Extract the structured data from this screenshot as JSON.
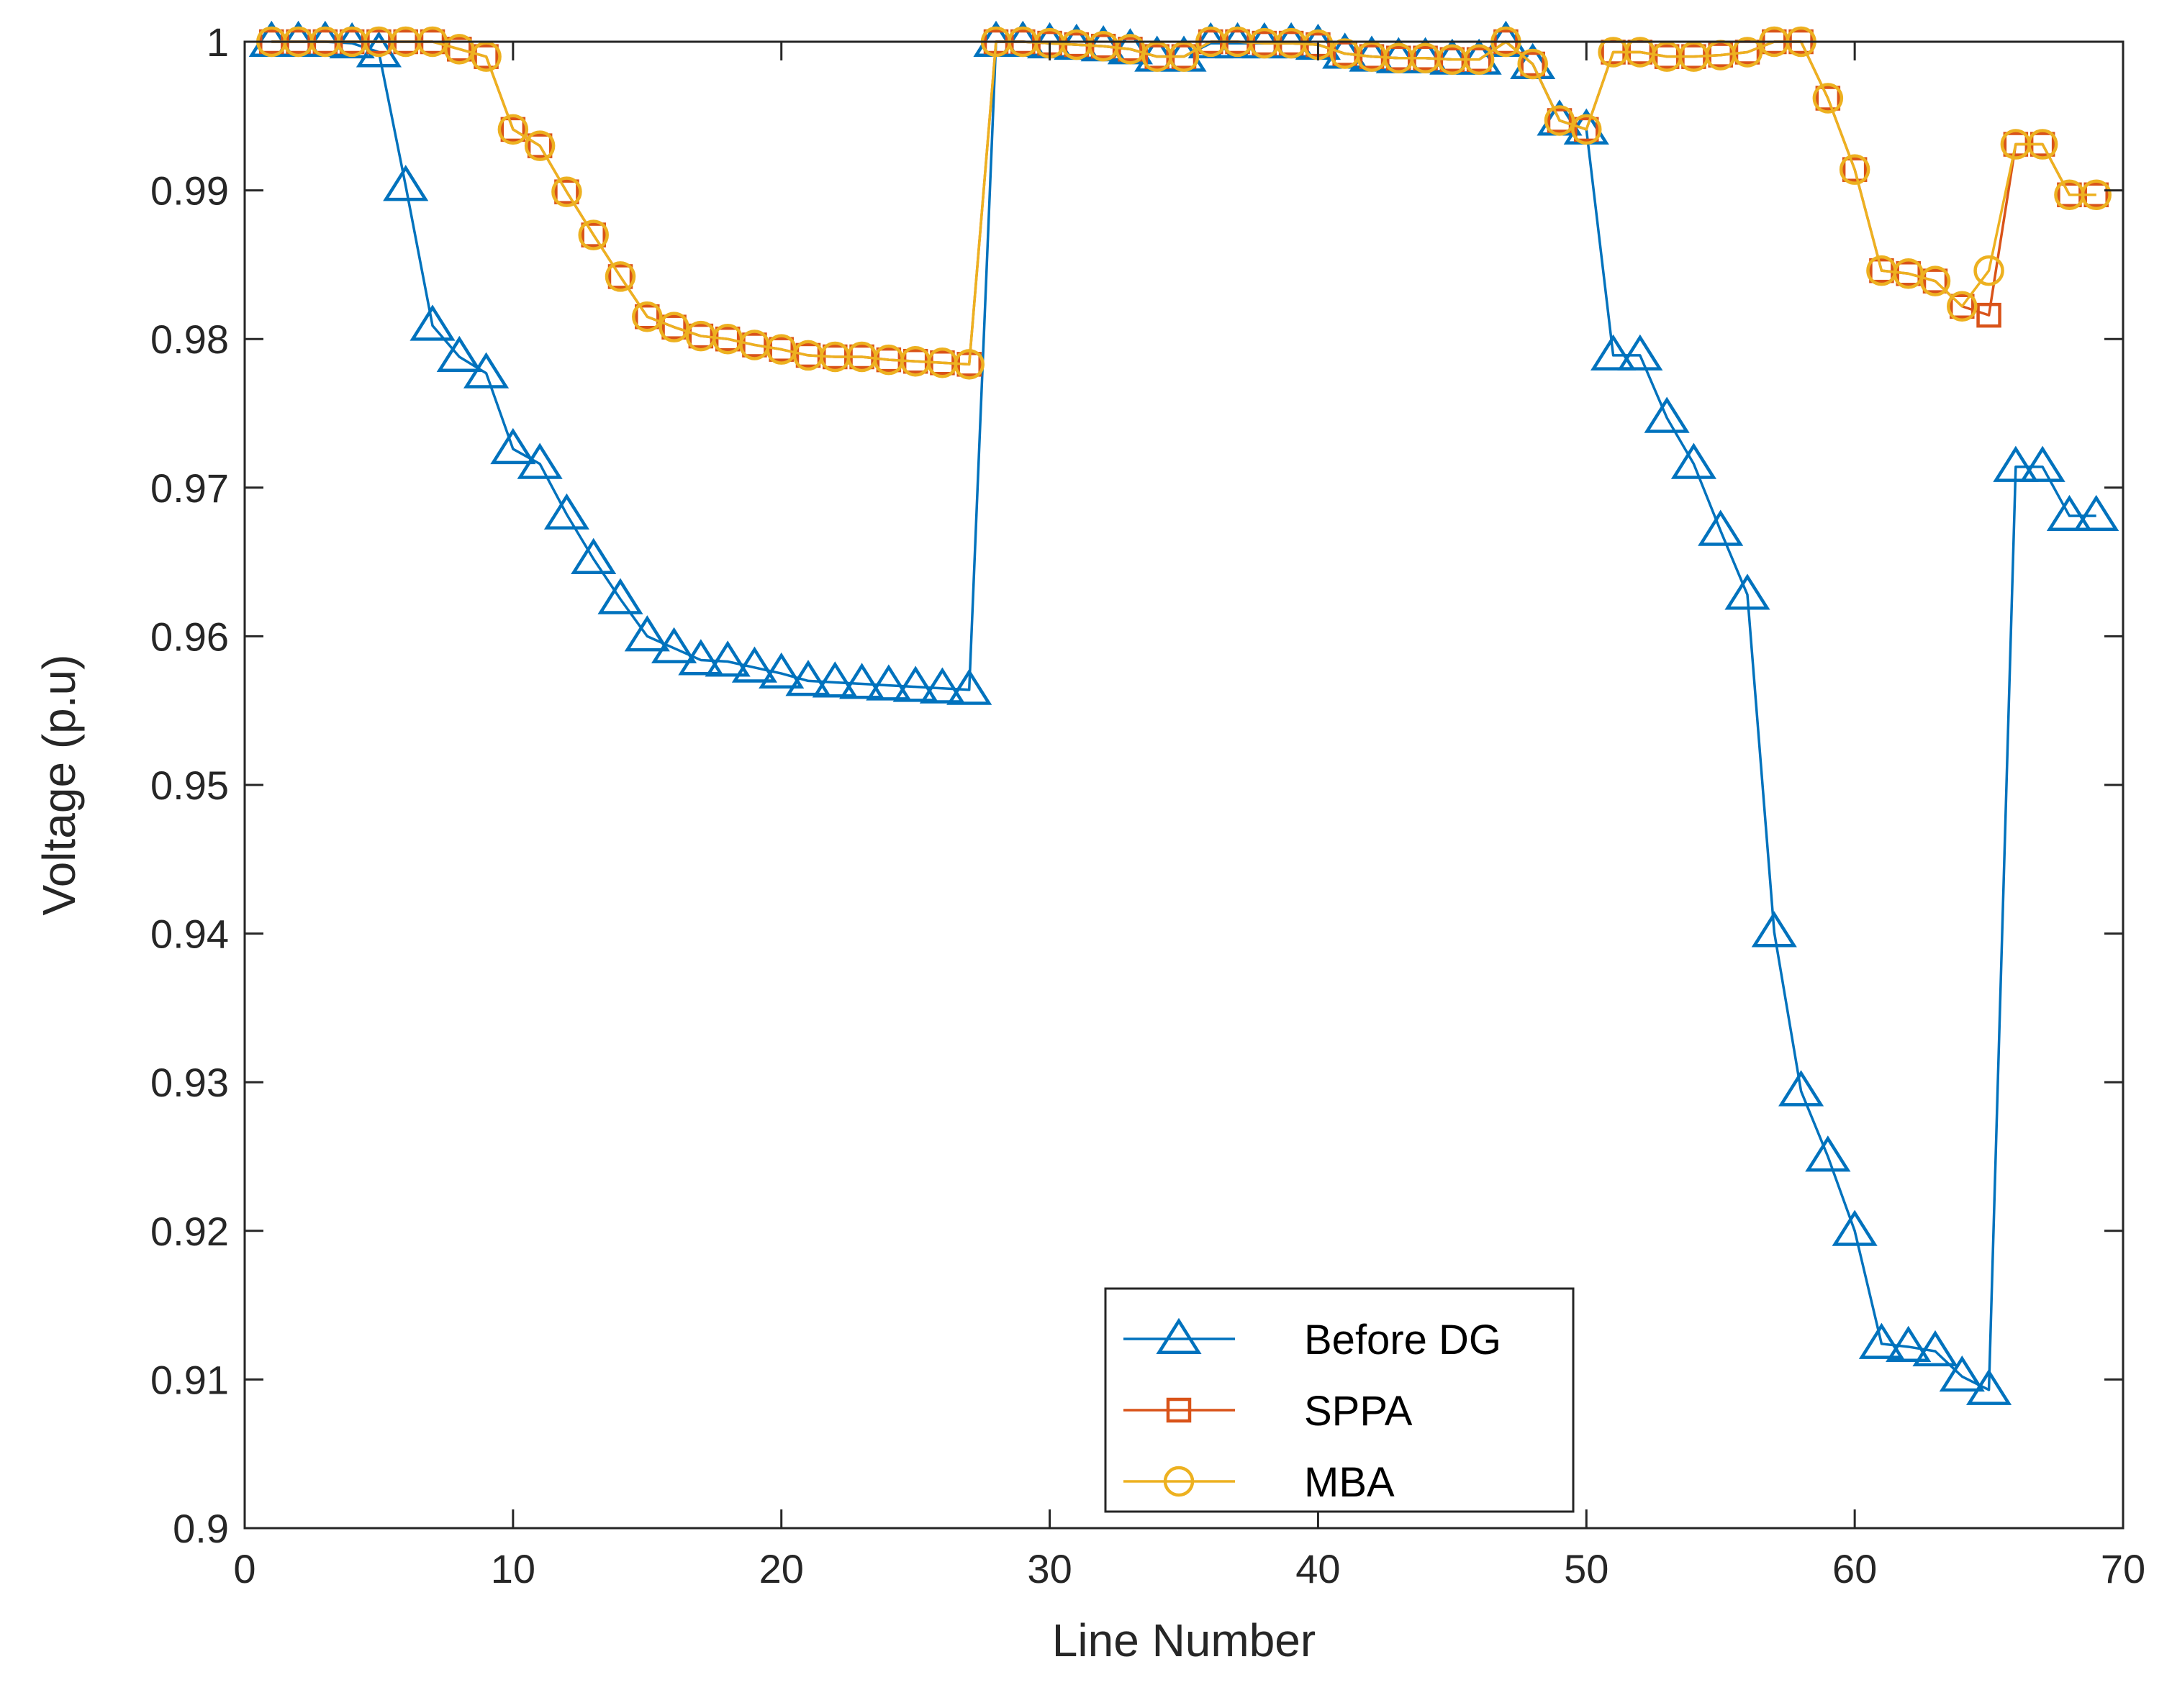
{
  "chart_data": {
    "type": "line",
    "xlabel": "Line Number",
    "ylabel": "Voltage (p.u)",
    "xlim": [
      0,
      70
    ],
    "ylim": [
      0.9,
      1
    ],
    "xticks": [
      0,
      10,
      20,
      30,
      40,
      50,
      60,
      70
    ],
    "yticks": [
      0.9,
      0.91,
      0.92,
      0.93,
      0.94,
      0.95,
      0.96,
      0.97,
      0.98,
      0.99,
      1
    ],
    "ytick_labels": [
      "0.9",
      "0.91",
      "0.92",
      "0.93",
      "0.94",
      "0.95",
      "0.96",
      "0.97",
      "0.98",
      "0.99",
      "1"
    ],
    "grid": false,
    "legend_position": "bottom-center",
    "x": [
      1,
      2,
      3,
      4,
      5,
      6,
      7,
      8,
      9,
      10,
      11,
      12,
      13,
      14,
      15,
      16,
      17,
      18,
      19,
      20,
      21,
      22,
      23,
      24,
      25,
      26,
      27,
      28,
      29,
      30,
      31,
      32,
      33,
      34,
      35,
      36,
      37,
      38,
      39,
      40,
      41,
      42,
      43,
      44,
      45,
      46,
      47,
      48,
      49,
      50,
      51,
      52,
      53,
      54,
      55,
      56,
      57,
      58,
      59,
      60,
      61,
      62,
      63,
      64,
      65,
      66,
      67,
      68,
      69
    ],
    "series": [
      {
        "name": "Before DG",
        "color": "#0072BD",
        "marker": "triangle",
        "values": [
          1.0,
          1.0,
          1.0,
          0.9999,
          0.9993,
          0.9903,
          0.9809,
          0.9788,
          0.9777,
          0.9726,
          0.9716,
          0.9682,
          0.9652,
          0.9625,
          0.96,
          0.9592,
          0.9584,
          0.9583,
          0.9579,
          0.9575,
          0.957,
          0.9569,
          0.9568,
          0.9567,
          0.9566,
          0.9565,
          0.9564,
          1.0,
          1.0,
          0.9999,
          0.9998,
          0.9997,
          0.9995,
          0.999,
          0.999,
          0.9999,
          0.9999,
          0.9999,
          0.9999,
          0.9998,
          0.9992,
          0.999,
          0.9989,
          0.9989,
          0.9988,
          0.9988,
          1.0,
          0.9985,
          0.9947,
          0.9941,
          0.9789,
          0.9789,
          0.9747,
          0.9716,
          0.9671,
          0.9628,
          0.9401,
          0.9294,
          0.925,
          0.92,
          0.9124,
          0.9122,
          0.9119,
          0.9102,
          0.9093,
          0.9714,
          0.9714,
          0.9681,
          0.9681
        ]
      },
      {
        "name": "SPPA",
        "color": "#D95319",
        "marker": "square",
        "values": [
          1.0,
          1.0,
          1.0,
          1.0,
          1.0,
          1.0,
          1.0,
          0.9995,
          0.999,
          0.9941,
          0.993,
          0.9899,
          0.987,
          0.9842,
          0.9815,
          0.9808,
          0.9802,
          0.98,
          0.9796,
          0.9793,
          0.9789,
          0.9788,
          0.9788,
          0.9786,
          0.9785,
          0.9784,
          0.9783,
          1.0,
          1.0,
          0.9999,
          0.9998,
          0.9997,
          0.9995,
          0.999,
          0.999,
          1.0,
          1.0,
          0.9999,
          0.9999,
          0.9998,
          0.9992,
          0.999,
          0.9989,
          0.9989,
          0.9988,
          0.9988,
          1.0,
          0.9985,
          0.9947,
          0.9941,
          0.9993,
          0.9993,
          0.999,
          0.999,
          0.9991,
          0.9993,
          1.0,
          1.0,
          0.9962,
          0.9914,
          0.9846,
          0.9844,
          0.9839,
          0.9822,
          0.9816,
          0.9931,
          0.9931,
          0.9897,
          0.9897
        ]
      },
      {
        "name": "MBA",
        "color": "#EDB120",
        "marker": "circle",
        "values": [
          1.0,
          1.0,
          1.0,
          1.0,
          1.0,
          1.0,
          1.0,
          0.9995,
          0.999,
          0.9941,
          0.993,
          0.9899,
          0.987,
          0.9842,
          0.9815,
          0.9808,
          0.9802,
          0.98,
          0.9796,
          0.9793,
          0.9789,
          0.9788,
          0.9788,
          0.9786,
          0.9785,
          0.9784,
          0.9783,
          1.0,
          1.0,
          0.9999,
          0.9998,
          0.9997,
          0.9995,
          0.999,
          0.999,
          1.0,
          1.0,
          0.9999,
          0.9999,
          0.9998,
          0.9992,
          0.999,
          0.9989,
          0.9989,
          0.9988,
          0.9988,
          1.0,
          0.9985,
          0.9947,
          0.9941,
          0.9993,
          0.9993,
          0.999,
          0.999,
          0.9991,
          0.9993,
          1.0,
          1.0,
          0.9962,
          0.9914,
          0.9846,
          0.9844,
          0.9839,
          0.9822,
          0.9846,
          0.9931,
          0.9931,
          0.9897,
          0.9897
        ]
      }
    ]
  }
}
